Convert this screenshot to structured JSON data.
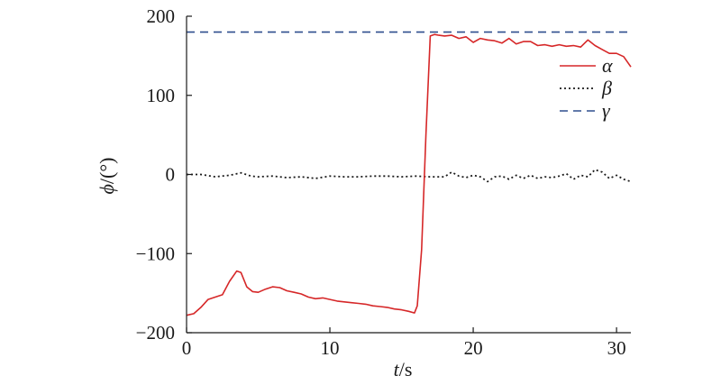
{
  "chart_data": {
    "type": "line",
    "xlabel_italic": "t",
    "xlabel_rest": "/s",
    "ylabel_italic": "ϕ",
    "ylabel_rest": "/(°)",
    "xlim": [
      0,
      31
    ],
    "ylim": [
      -200,
      200
    ],
    "x_ticks": [
      0,
      10,
      20,
      30
    ],
    "x_tick_labels": [
      "0",
      "10",
      "20",
      "30"
    ],
    "y_ticks": [
      -200,
      -100,
      0,
      100,
      200
    ],
    "y_tick_labels": [
      "−200",
      "−100",
      "0",
      "100",
      "200"
    ],
    "grid": false,
    "legend_position": "top-right",
    "series": [
      {
        "name": "α",
        "color": "#d62728",
        "style": "solid",
        "x": [
          0,
          0.5,
          1,
          1.5,
          2,
          2.5,
          3,
          3.5,
          3.8,
          4.2,
          4.6,
          5,
          5.5,
          6,
          6.5,
          7,
          7.5,
          8,
          8.5,
          9,
          9.5,
          10,
          10.5,
          11,
          11.5,
          12,
          12.5,
          13,
          13.5,
          14,
          14.5,
          15,
          15.5,
          15.9,
          16.1,
          16.4,
          16.7,
          17.0,
          17.3,
          17.6,
          18,
          18.5,
          19,
          19.5,
          20,
          20.5,
          21,
          21.5,
          22,
          22.5,
          23,
          23.5,
          24,
          24.5,
          25,
          25.5,
          26,
          26.5,
          27,
          27.5,
          28,
          28.5,
          29,
          29.5,
          30,
          30.5,
          31
        ],
        "y": [
          -178,
          -176,
          -168,
          -158,
          -155,
          -152,
          -135,
          -122,
          -124,
          -142,
          -148,
          -149,
          -145,
          -142,
          -143,
          -147,
          -149,
          -151,
          -155,
          -157,
          -156,
          -158,
          -160,
          -161,
          -162,
          -163,
          -164,
          -166,
          -167,
          -168,
          -170,
          -171,
          -173,
          -175,
          -166,
          -95,
          50,
          175,
          177,
          176,
          175,
          176,
          172,
          174,
          167,
          172,
          170,
          169,
          166,
          172,
          165,
          168,
          168,
          163,
          164,
          162,
          164,
          162,
          163,
          161,
          170,
          163,
          158,
          153,
          153,
          149,
          136
        ]
      },
      {
        "name": "β",
        "color": "#1a1a1a",
        "style": "dotted",
        "x": [
          0,
          1,
          2,
          3,
          3.8,
          4.5,
          5,
          6,
          7,
          8,
          9,
          10,
          11,
          12,
          13,
          14,
          15,
          16,
          17,
          18,
          18.5,
          19,
          19.5,
          20,
          20.5,
          21,
          21.5,
          22,
          22.5,
          23,
          23.5,
          24,
          24.5,
          25,
          25.5,
          26,
          26.5,
          27,
          27.5,
          28,
          28.5,
          29,
          29.5,
          30,
          30.5,
          31
        ],
        "y": [
          0,
          0,
          -3,
          -1,
          2,
          -2,
          -3,
          -2,
          -4,
          -3,
          -5,
          -2,
          -3,
          -3,
          -2,
          -2,
          -3,
          -2,
          -3,
          -3,
          3,
          -2,
          -4,
          -1,
          -3,
          -9,
          -3,
          -2,
          -6,
          -1,
          -5,
          -1,
          -5,
          -3,
          -4,
          -2,
          1,
          -6,
          -1,
          -3,
          6,
          3,
          -5,
          -1,
          -6,
          -9
        ]
      },
      {
        "name": "γ",
        "color": "#2e4e8e",
        "style": "dashed",
        "x": [
          0,
          31
        ],
        "y": [
          180,
          180
        ]
      }
    ]
  }
}
